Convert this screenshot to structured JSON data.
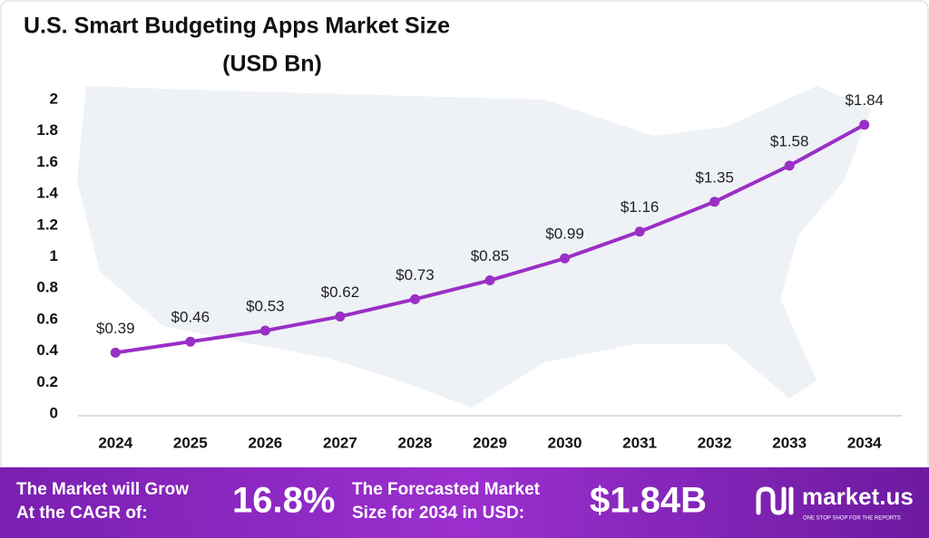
{
  "chart_data": {
    "type": "line",
    "title": "U.S. Smart Budgeting Apps Market Size",
    "subtitle": "(USD Bn)",
    "categories": [
      "2024",
      "2025",
      "2026",
      "2027",
      "2028",
      "2029",
      "2030",
      "2031",
      "2032",
      "2033",
      "2034"
    ],
    "values": [
      0.39,
      0.46,
      0.53,
      0.62,
      0.73,
      0.85,
      0.99,
      1.16,
      1.35,
      1.58,
      1.84
    ],
    "value_labels": [
      "$0.39",
      "$0.46",
      "$0.53",
      "$0.62",
      "$0.73",
      "$0.85",
      "$0.99",
      "$1.16",
      "$1.35",
      "$1.58",
      "$1.84"
    ],
    "color": "#9a2fc6",
    "ylim": [
      0,
      2
    ],
    "yticks": [
      0,
      0.2,
      0.4,
      0.6,
      0.8,
      1,
      1.2,
      1.4,
      1.6,
      1.8,
      2
    ],
    "grid": false
  },
  "footer": {
    "cagr_label": [
      "The Market will Grow",
      "At the CAGR of:"
    ],
    "cagr_value": "16.8%",
    "forecast_label": [
      "The Forecasted Market",
      "Size for 2034 in USD:"
    ],
    "forecast_value": "$1.84B",
    "brand": "market.us",
    "tagline": "ONE STOP SHOP FOR THE REPORTS"
  }
}
